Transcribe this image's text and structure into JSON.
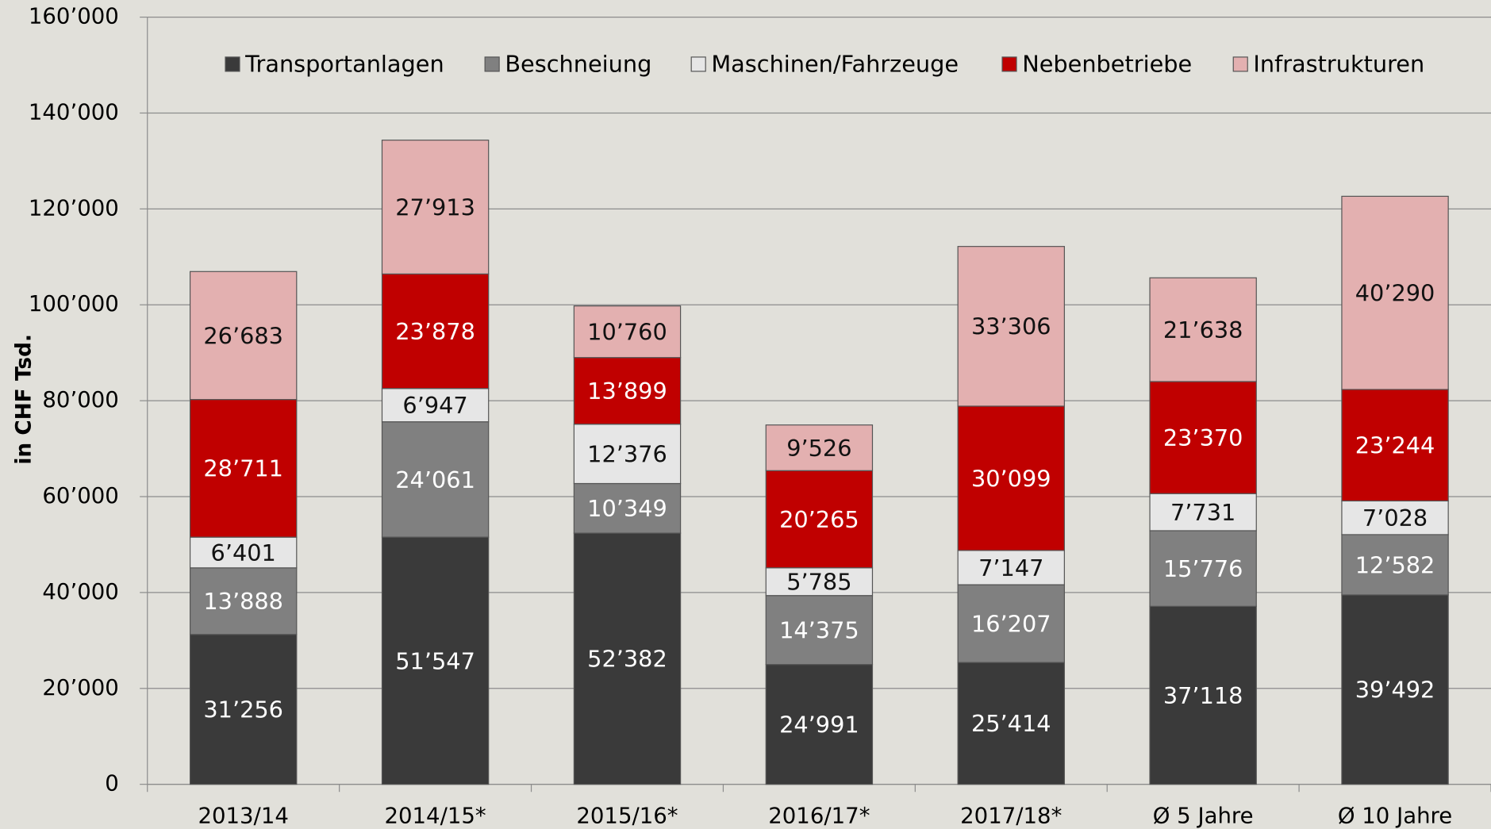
{
  "chart_data": {
    "type": "stacked_bar",
    "y_label": "in CHF Tsd.",
    "categories": [
      "2013/14",
      "2014/15*",
      "2015/16*",
      "2016/17*",
      "2017/18*",
      "Ø 5 Jahre",
      "Ø 10 Jahre"
    ],
    "series": [
      {
        "name": "Transportanlagen",
        "color": "#3a3a3a",
        "values": [
          31256,
          51547,
          52382,
          24991,
          25414,
          37118,
          39492
        ],
        "value_labels": [
          "31’256",
          "51’547",
          "52’382",
          "24’991",
          "25’414",
          "37’118",
          "39’492"
        ]
      },
      {
        "name": "Beschneiung",
        "color": "#808080",
        "values": [
          13888,
          24061,
          10349,
          14375,
          16207,
          15776,
          12582
        ],
        "value_labels": [
          "13’888",
          "24’061",
          "10’349",
          "14’375",
          "16’207",
          "15’776",
          "12’582"
        ]
      },
      {
        "name": "Maschinen/Fahrzeuge",
        "color": "#e6e6e6",
        "values": [
          6401,
          6947,
          12376,
          5785,
          7147,
          7731,
          7028
        ],
        "value_labels": [
          "6’401",
          "6’947",
          "12’376",
          "5’785",
          "7’147",
          "7’731",
          "7’028"
        ]
      },
      {
        "name": "Nebenbetriebe",
        "color": "#c00000",
        "values": [
          28711,
          23878,
          13899,
          20265,
          30099,
          23370,
          23244
        ],
        "value_labels": [
          "28’711",
          "23’878",
          "13’899",
          "20’265",
          "30’099",
          "23’370",
          "23’244"
        ]
      },
      {
        "name": "Infrastrukturen",
        "color": "#e3b0b0",
        "values": [
          26683,
          27913,
          10760,
          9526,
          33306,
          21638,
          40290
        ],
        "value_labels": [
          "26’683",
          "27’913",
          "10’760",
          "9’526",
          "33’306",
          "21’638",
          "40’290"
        ]
      }
    ],
    "ylim": [
      0,
      160000
    ],
    "yticks": [
      0,
      {
        "value": 20000,
        "label": "20’000"
      },
      {
        "value": 40000,
        "label": "40’000"
      },
      {
        "value": 60000,
        "label": "60’000"
      },
      {
        "value": 80000,
        "label": "80’000"
      },
      {
        "value": 100000,
        "label": "100’000"
      },
      {
        "value": 120000,
        "label": "120’000"
      },
      {
        "value": 140000,
        "label": "140’000"
      },
      {
        "value": 160000,
        "label": "160’000"
      }
    ],
    "grid": true,
    "legend": "top"
  }
}
